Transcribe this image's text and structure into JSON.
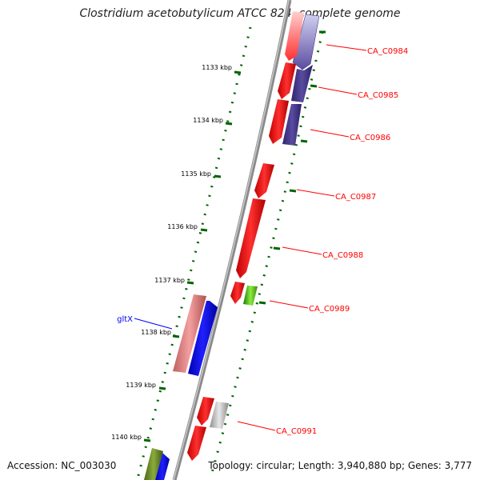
{
  "title": "Clostridium acetobutylicum ATCC 824, complete genome",
  "accession": "Accession: NC_003030",
  "summary": "Topology: circular; Length: 3,940,880 bp; Genes: 3,777",
  "colors": {
    "backbone": "#808080",
    "gene_red": "#ff0000",
    "gene_navy": "#4a3c8c",
    "gene_blue": "#0000ff",
    "gene_pink": "#f08080",
    "gene_green": "#33aa00",
    "gene_olive": "#6b8e23",
    "gene_gray": "#c8c8c8",
    "ticks": "#006400",
    "label_red": "#ff0000",
    "label_blue": "#0000ff"
  },
  "ticks": [
    {
      "label": "1133 kbp"
    },
    {
      "label": "1134 kbp"
    },
    {
      "label": "1135 kbp"
    },
    {
      "label": "1136 kbp"
    },
    {
      "label": "1137 kbp"
    },
    {
      "label": "1138 kbp"
    },
    {
      "label": "1139 kbp"
    },
    {
      "label": "1140 kbp"
    }
  ],
  "gene_labels": [
    {
      "text": "CA_C0984",
      "color": "red"
    },
    {
      "text": "CA_C0985",
      "color": "red"
    },
    {
      "text": "CA_C0986",
      "color": "red"
    },
    {
      "text": "CA_C0987",
      "color": "red"
    },
    {
      "text": "CA_C0988",
      "color": "red"
    },
    {
      "text": "CA_C0989",
      "color": "red"
    },
    {
      "text": "CA_C0991",
      "color": "red"
    },
    {
      "text": "gltX",
      "color": "blue"
    }
  ]
}
